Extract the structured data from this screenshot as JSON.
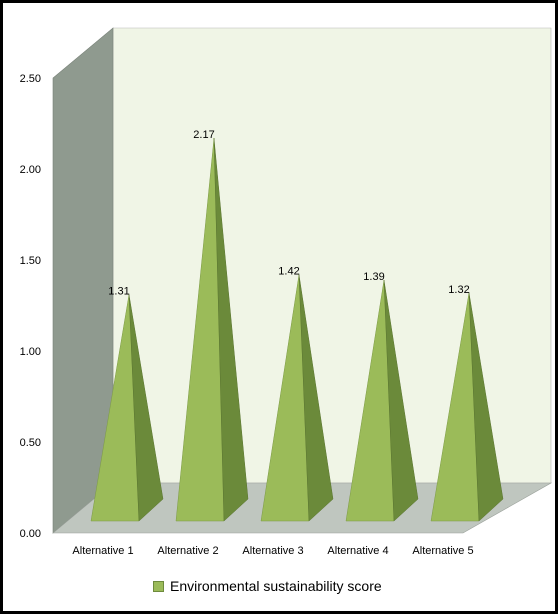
{
  "chart_data": {
    "type": "bar",
    "style": "3d-pyramid",
    "categories": [
      "Alternative 1",
      "Alternative 2",
      "Alternative 3",
      "Alternative 4",
      "Alternative 5"
    ],
    "series": [
      {
        "name": "Environmental sustainability score",
        "values": [
          1.31,
          2.17,
          1.42,
          1.39,
          1.32
        ]
      }
    ],
    "data_labels": [
      "1.31",
      "2.17",
      "1.42",
      "1.39",
      "1.32"
    ],
    "y_ticks": [
      "0.00",
      "0.50",
      "1.00",
      "1.50",
      "2.00",
      "2.50"
    ],
    "ylim": [
      0,
      2.5
    ],
    "title": "",
    "xlabel": "",
    "ylabel": "",
    "grid": false,
    "legend_position": "bottom",
    "colors": {
      "pyramid_front": "#9BBB59",
      "pyramid_side": "#6B8A3A",
      "back_wall": "#F0F5E6",
      "side_wall": "#8F9A8F",
      "floor": "#BFC6BF"
    }
  }
}
